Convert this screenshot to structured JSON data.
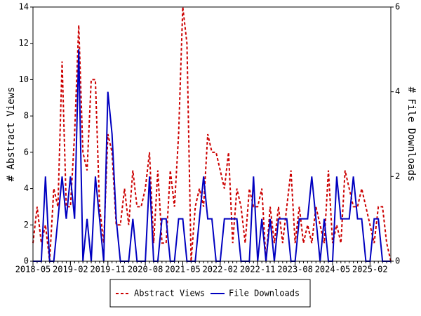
{
  "chart_data": {
    "type": "line",
    "x": [
      "2018-05",
      "2018-06",
      "2018-07",
      "2018-08",
      "2018-09",
      "2018-10",
      "2018-11",
      "2018-12",
      "2019-01",
      "2019-02",
      "2019-03",
      "2019-04",
      "2019-05",
      "2019-06",
      "2019-07",
      "2019-08",
      "2019-09",
      "2019-10",
      "2019-11",
      "2019-12",
      "2020-01",
      "2020-02",
      "2020-03",
      "2020-04",
      "2020-05",
      "2020-06",
      "2020-07",
      "2020-08",
      "2020-09",
      "2020-10",
      "2020-11",
      "2020-12",
      "2021-01",
      "2021-02",
      "2021-03",
      "2021-04",
      "2021-05",
      "2021-06",
      "2021-07",
      "2021-08",
      "2021-09",
      "2021-10",
      "2021-11",
      "2021-12",
      "2022-01",
      "2022-02",
      "2022-03",
      "2022-04",
      "2022-05",
      "2022-06",
      "2022-07",
      "2022-08",
      "2022-09",
      "2022-10",
      "2022-11",
      "2022-12",
      "2023-01",
      "2023-02",
      "2023-03",
      "2023-04",
      "2023-05",
      "2023-06",
      "2023-07",
      "2023-08",
      "2023-09",
      "2023-10",
      "2023-11",
      "2023-12",
      "2024-01",
      "2024-02",
      "2024-03",
      "2024-04",
      "2024-05",
      "2024-06",
      "2024-07",
      "2024-08",
      "2024-09",
      "2024-10",
      "2024-11",
      "2024-12",
      "2025-01",
      "2025-02",
      "2025-03",
      "2025-04",
      "2025-05",
      "2025-06",
      "2025-07"
    ],
    "xticks": [
      "2018-05",
      "2019-02",
      "2019-11",
      "2020-08",
      "2021-05",
      "2022-02",
      "2022-11",
      "2023-08",
      "2024-05",
      "2025-02"
    ],
    "series": [
      {
        "name": "Abstract Views",
        "color": "#cc0000",
        "dash": true,
        "values": [
          1,
          3,
          1,
          2,
          0,
          4,
          3,
          11,
          3,
          3,
          7,
          13,
          6,
          5,
          10,
          10,
          3,
          1,
          7,
          6,
          2,
          2,
          4,
          2,
          5,
          3,
          3,
          4,
          6,
          1,
          5,
          1,
          1,
          5,
          3,
          7,
          14,
          12,
          0,
          3,
          4,
          3,
          7,
          6,
          6,
          5,
          4,
          6,
          1,
          4,
          3,
          1,
          4,
          3,
          3,
          4,
          0,
          3,
          1,
          3,
          1,
          3,
          5,
          1,
          3,
          1,
          2,
          1,
          3,
          2,
          1,
          5,
          1,
          2,
          1,
          5,
          4,
          3,
          3,
          4,
          3,
          2,
          1,
          3,
          3,
          1,
          0
        ]
      },
      {
        "name": "File Downloads",
        "color": "#0000c0",
        "axis": "y2",
        "values": [
          0,
          0,
          0,
          2,
          0,
          0,
          1,
          2,
          1,
          2,
          1,
          5,
          0,
          1,
          0,
          2,
          1,
          0,
          4,
          3,
          1,
          0,
          0,
          0,
          1,
          0,
          0,
          0,
          2,
          0,
          0,
          1,
          1,
          0,
          0,
          1,
          1,
          0,
          0,
          0,
          1,
          2,
          1,
          1,
          0,
          0,
          1,
          1,
          1,
          1,
          0,
          0,
          0,
          2,
          0,
          1,
          0,
          1,
          0,
          1,
          1,
          1,
          0,
          0,
          1,
          1,
          1,
          2,
          1,
          0,
          1,
          0,
          0,
          2,
          1,
          1,
          1,
          2,
          1,
          1,
          0,
          0,
          1,
          1,
          0,
          0,
          0
        ]
      }
    ],
    "ylabel": "# Abstract Views",
    "y2label": "# File Downloads",
    "ylim": [
      0,
      14
    ],
    "yticks": [
      0,
      2,
      4,
      6,
      8,
      10,
      12,
      14
    ],
    "y2lim": [
      0,
      6
    ],
    "y2ticks": [
      0,
      2,
      4,
      6
    ]
  }
}
